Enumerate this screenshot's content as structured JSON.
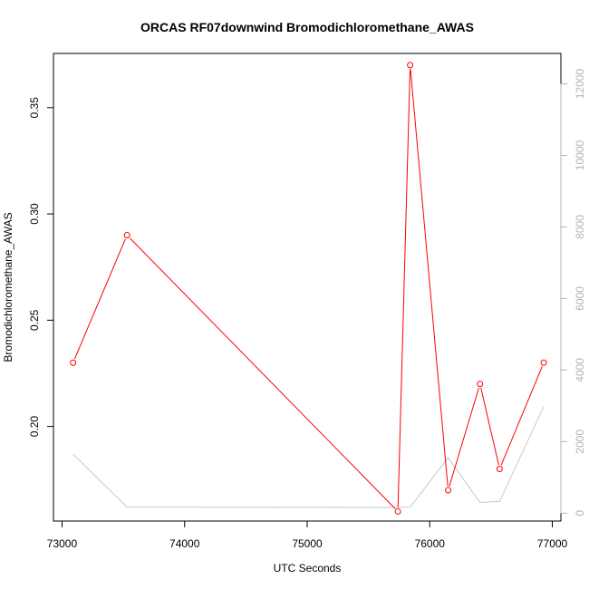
{
  "chart_data": {
    "type": "line",
    "title": "ORCAS RF07downwind Bromodichloromethane_AWAS",
    "xlabel": "UTC Seconds",
    "ylabel": "Bromodichloromethane_AWAS",
    "xlim": [
      72930,
      77070
    ],
    "ylim": [
      0.1555,
      0.3755
    ],
    "y2lim": [
      -220,
      12850
    ],
    "x_ticks": [
      73000,
      74000,
      75000,
      76000,
      77000
    ],
    "y_ticks": [
      0.2,
      0.25,
      0.3,
      0.35
    ],
    "y_tick_labels": [
      "0.20",
      "0.25",
      "0.30",
      "0.35"
    ],
    "y2_ticks": [
      0,
      2000,
      4000,
      6000,
      8000,
      10000,
      12000
    ],
    "colors": {
      "primary": "#ff0000",
      "secondary": "#c8c8c8",
      "right_axis": "#b3b3b3"
    },
    "series": [
      {
        "axis": "left",
        "style": "line+points",
        "x": [
          73090,
          73530,
          75740,
          75840,
          76150,
          76410,
          76570,
          76930
        ],
        "y": [
          0.23,
          0.29,
          0.16,
          0.37,
          0.17,
          0.22,
          0.18,
          0.23
        ]
      },
      {
        "axis": "right",
        "style": "line",
        "x": [
          73090,
          73530,
          75740,
          75840,
          76150,
          76410,
          76570,
          76930
        ],
        "y": [
          1650,
          170,
          160,
          170,
          1550,
          300,
          330,
          2980
        ]
      }
    ]
  }
}
